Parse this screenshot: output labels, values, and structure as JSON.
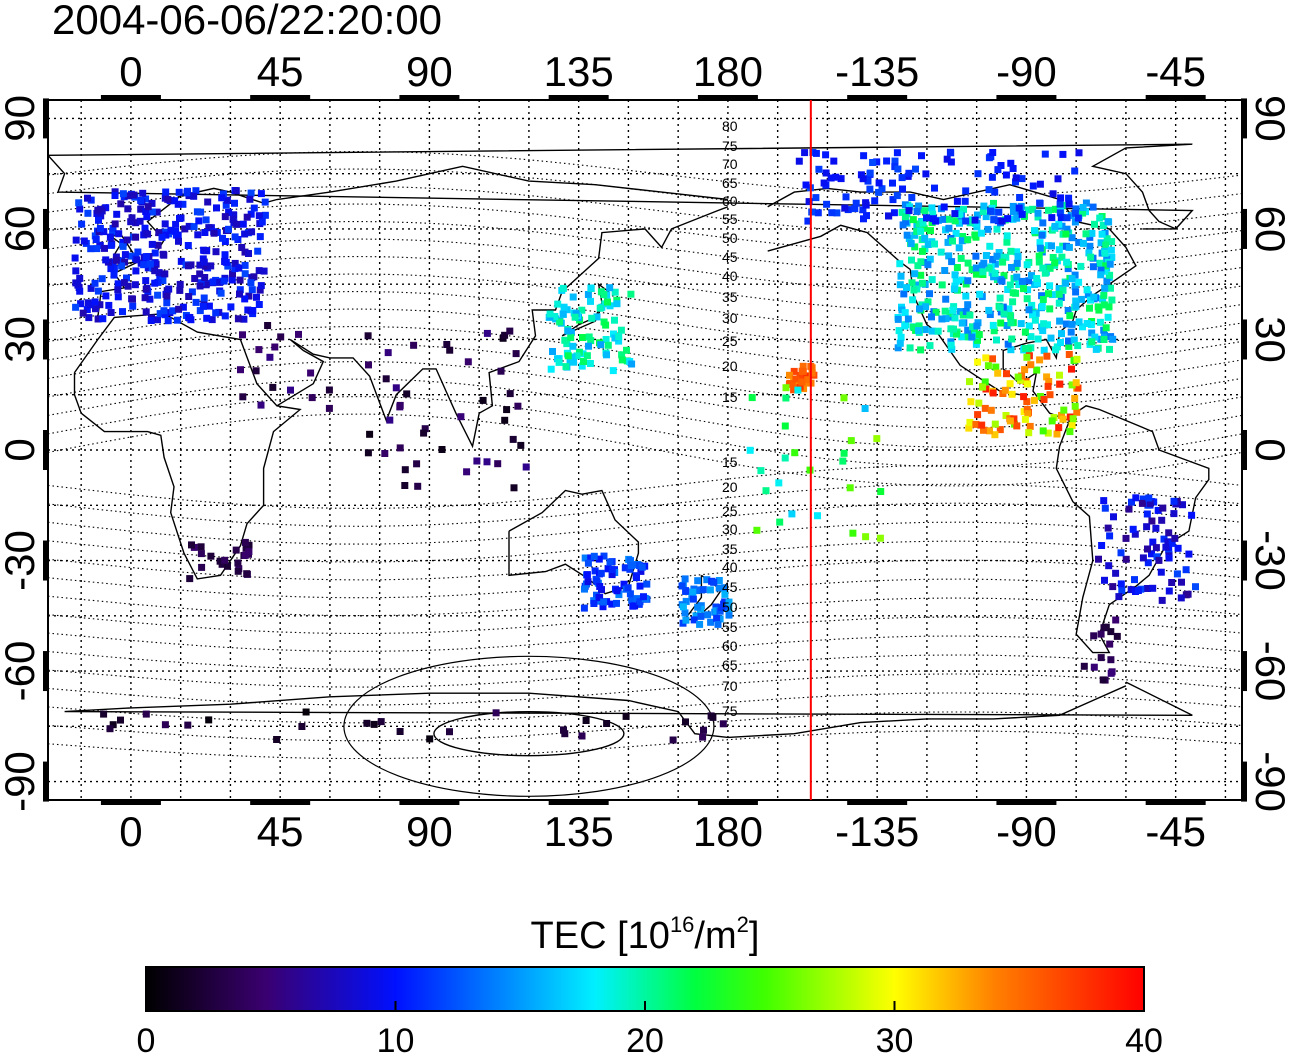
{
  "title": "2004-06-06/22:20:00",
  "top_lon_labels": [
    "0",
    "45",
    "90",
    "135",
    "180",
    "-135",
    "-90",
    "-45"
  ],
  "bottom_lon_labels": [
    "0",
    "45",
    "90",
    "135",
    "180",
    "-135",
    "-90",
    "-45"
  ],
  "left_lat_labels": [
    "90",
    "60",
    "30",
    "0",
    "-30",
    "-60",
    "-90"
  ],
  "right_lat_labels": [
    "90",
    "60",
    "30",
    "0",
    "-30",
    "-60",
    "-90"
  ],
  "contour_labels_north": [
    "80",
    "75",
    "70",
    "65",
    "60",
    "55",
    "50",
    "45",
    "40",
    "35",
    "30",
    "25",
    "20",
    "15"
  ],
  "contour_labels_south": [
    "15",
    "20",
    "25",
    "30",
    "35",
    "40",
    "45",
    "50",
    "55",
    "60",
    "65",
    "70",
    "75"
  ],
  "colorbar": {
    "label_prefix": "TEC  [10",
    "label_exp": "16",
    "label_mid": "/m",
    "label_exp2": "2",
    "label_suffix": "]",
    "tick_labels": [
      "0",
      "10",
      "20",
      "30",
      "40"
    ],
    "min": 0,
    "max": 40,
    "colors": [
      "#000000",
      "#3a0070",
      "#0010ff",
      "#00f0ff",
      "#00ff00",
      "#ffff00",
      "#ff0000"
    ]
  },
  "terminator_longitude": -155,
  "terminator_color": "#ff0000",
  "chart_data": {
    "type": "heatmap",
    "title": "2004-06-06/22:20:00",
    "x_range": [
      -25,
      335
    ],
    "y_range": [
      -95,
      95
    ],
    "colorbar_label": "TEC [10^16/m^2]",
    "value_range": [
      0,
      40
    ],
    "regions": [
      {
        "name": "Europe",
        "lon": [
          -18,
          40
        ],
        "lat": [
          36,
          72
        ],
        "tec": 10
      },
      {
        "name": "North America",
        "lon": [
          -130,
          -65
        ],
        "lat": [
          28,
          68
        ],
        "tec": 18
      },
      {
        "name": "Central America",
        "lon": [
          -105,
          -75
        ],
        "lat": [
          5,
          25
        ],
        "tec": 36
      },
      {
        "name": "Japan",
        "lon": [
          125,
          150
        ],
        "lat": [
          25,
          45
        ],
        "tec": 18
      },
      {
        "name": "Australia",
        "lon": [
          135,
          155
        ],
        "lat": [
          -42,
          -28
        ],
        "tec": 12
      },
      {
        "name": "New Zealand",
        "lon": [
          165,
          180
        ],
        "lat": [
          -47,
          -34
        ],
        "tec": 12
      },
      {
        "name": "South America",
        "lon": [
          -70,
          -40
        ],
        "lat": [
          -40,
          -15
        ],
        "tec": 9
      },
      {
        "name": "Hawaii",
        "lon": [
          -162,
          -155
        ],
        "lat": [
          18,
          23
        ],
        "tec": 36
      },
      {
        "name": "South Africa",
        "lon": [
          15,
          35
        ],
        "lat": [
          -35,
          -25
        ],
        "tec": 3
      },
      {
        "name": "Antarctica",
        "lon": [
          -20,
          180
        ],
        "lat": [
          -78,
          -70
        ],
        "tec": 2
      }
    ]
  }
}
